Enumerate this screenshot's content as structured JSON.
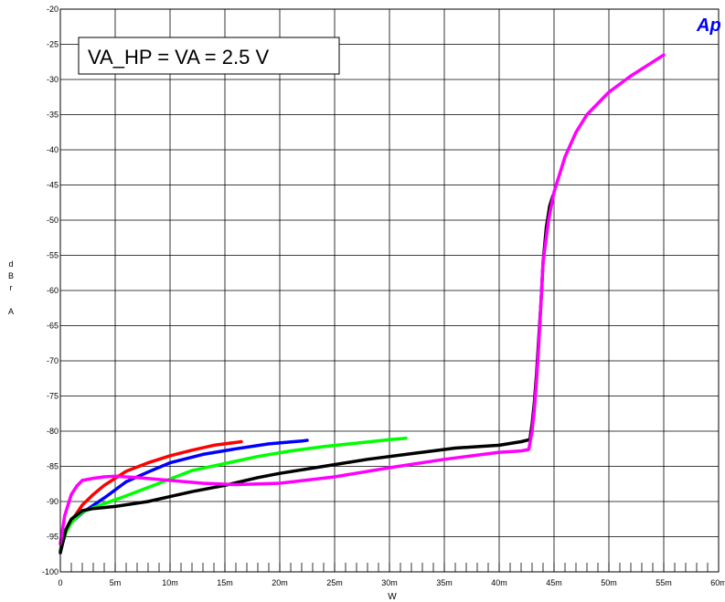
{
  "logo_text": "Ap",
  "colors": {
    "red": "#ff0000",
    "blue": "#0000ff",
    "green": "#00ff00",
    "black": "#000000",
    "magenta": "#ff00ff",
    "logo": "#0000ff"
  },
  "chart_data": {
    "type": "line",
    "xlabel": "W",
    "ylabel": [
      "d",
      "B",
      "r",
      "A"
    ],
    "xlim": [
      0,
      0.06
    ],
    "ylim": [
      -100,
      -20
    ],
    "x_ticks": [
      "0",
      "5m",
      "10m",
      "15m",
      "20m",
      "25m",
      "30m",
      "35m",
      "40m",
      "45m",
      "50m",
      "55m",
      "60m"
    ],
    "y_ticks": [
      "-20",
      "-25",
      "-30",
      "-35",
      "-40",
      "-45",
      "-50",
      "-55",
      "-60",
      "-65",
      "-70",
      "-75",
      "-80",
      "-85",
      "-90",
      "-95",
      "-100"
    ],
    "grid": true,
    "annotation": "VA_HP = VA = 2.5 V",
    "series": [
      {
        "color": "red",
        "x": [
          0,
          0.0002,
          0.0005,
          0.001,
          0.002,
          0.003,
          0.004,
          0.005,
          0.006,
          0.008,
          0.01,
          0.012,
          0.014,
          0.016,
          0.0165
        ],
        "y": [
          -97.0,
          -95.5,
          -94.2,
          -92.8,
          -90.5,
          -89.0,
          -87.7,
          -86.7,
          -85.7,
          -84.5,
          -83.5,
          -82.7,
          -82.0,
          -81.6,
          -81.5
        ]
      },
      {
        "color": "blue",
        "x": [
          0,
          0.0003,
          0.0006,
          0.001,
          0.002,
          0.004,
          0.006,
          0.008,
          0.01,
          0.013,
          0.016,
          0.019,
          0.022,
          0.0225
        ],
        "y": [
          -97.0,
          -95.0,
          -93.8,
          -93.0,
          -91.6,
          -89.5,
          -87.2,
          -85.8,
          -84.5,
          -83.3,
          -82.5,
          -81.8,
          -81.4,
          -81.3
        ]
      },
      {
        "color": "green",
        "x": [
          0,
          0.0005,
          0.001,
          0.002,
          0.004,
          0.006,
          0.008,
          0.01,
          0.012,
          0.015,
          0.018,
          0.021,
          0.024,
          0.027,
          0.03,
          0.0315
        ],
        "y": [
          -97.0,
          -94.5,
          -93.0,
          -91.5,
          -90.3,
          -89.2,
          -88.0,
          -86.8,
          -85.6,
          -84.6,
          -83.6,
          -82.8,
          -82.2,
          -81.7,
          -81.2,
          -81.0
        ]
      },
      {
        "color": "black",
        "x": [
          0,
          0.0005,
          0.001,
          0.002,
          0.003,
          0.005,
          0.008,
          0.01,
          0.012,
          0.015,
          0.018,
          0.02,
          0.024,
          0.028,
          0.032,
          0.036,
          0.04,
          0.042,
          0.0428,
          0.043,
          0.0432,
          0.0434,
          0.0436,
          0.0438,
          0.044,
          0.0443,
          0.0446,
          0.0449
        ],
        "y": [
          -97.3,
          -94.0,
          -92.5,
          -91.3,
          -91.0,
          -90.7,
          -90.0,
          -89.3,
          -88.6,
          -87.7,
          -86.6,
          -86.0,
          -85.0,
          -84.0,
          -83.2,
          -82.4,
          -82.0,
          -81.5,
          -81.2,
          -79.0,
          -76.0,
          -72.0,
          -67.0,
          -62.0,
          -56.0,
          -51.0,
          -48.0,
          -46.5
        ]
      },
      {
        "color": "magenta",
        "x": [
          0,
          0.0004,
          0.001,
          0.0015,
          0.002,
          0.003,
          0.004,
          0.005,
          0.007,
          0.01,
          0.013,
          0.016,
          0.02,
          0.025,
          0.03,
          0.035,
          0.04,
          0.042,
          0.0427,
          0.043,
          0.0432,
          0.0434,
          0.0436,
          0.0438,
          0.044,
          0.0445,
          0.045,
          0.046,
          0.047,
          0.048,
          0.05,
          0.052,
          0.054,
          0.055
        ],
        "y": [
          -96.0,
          -92.0,
          -89.0,
          -87.8,
          -87.0,
          -86.7,
          -86.5,
          -86.4,
          -86.6,
          -87.0,
          -87.4,
          -87.6,
          -87.4,
          -86.5,
          -85.2,
          -84.0,
          -83.0,
          -82.8,
          -82.6,
          -80.0,
          -77.0,
          -73.0,
          -68.0,
          -62.0,
          -56.0,
          -50.0,
          -46.0,
          -41.0,
          -37.5,
          -35.0,
          -31.8,
          -29.5,
          -27.5,
          -26.5
        ]
      }
    ]
  }
}
